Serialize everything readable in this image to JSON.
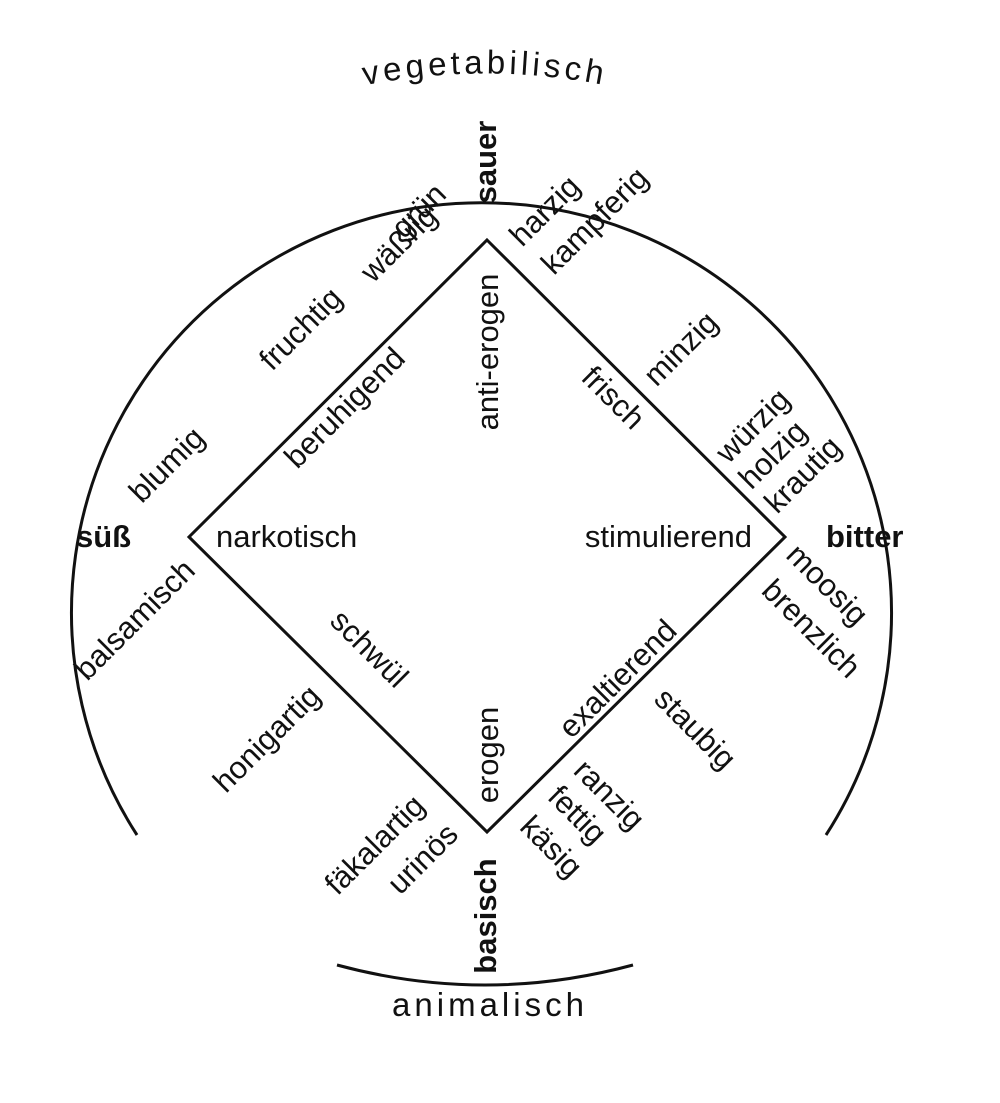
{
  "arc": {
    "top": "vegetabilisch",
    "bottom": "animalisch"
  },
  "tastes": {
    "top": "sauer",
    "right": "bitter",
    "bottom": "basisch",
    "left": "süß"
  },
  "poles": {
    "top": "anti-erogen",
    "bottom": "erogen",
    "left": "narkotisch",
    "right": "stimulierend"
  },
  "edges": {
    "top_left": "beruhigend",
    "top_right": "frisch",
    "bottom_left": "schwül",
    "bottom_right": "exaltierend"
  },
  "odors": {
    "gruen": "grün",
    "waessrig": "wäßrig",
    "harzig": "harzig",
    "kampferig": "kampferig",
    "fruchtig": "fruchtig",
    "minzig": "minzig",
    "blumig": "blumig",
    "wuerzig": "würzig",
    "holzig": "holzig",
    "krautig": "krautig",
    "balsamisch": "balsamisch",
    "moosig": "moosig",
    "brenzlich": "brenzlich",
    "honigartig": "honigartig",
    "staubig": "staubig",
    "faekalartig": "fäkalartig",
    "urinoes": "urinös",
    "ranzig": "ranzig",
    "fettig": "fettig",
    "kaesig": "käsig"
  }
}
